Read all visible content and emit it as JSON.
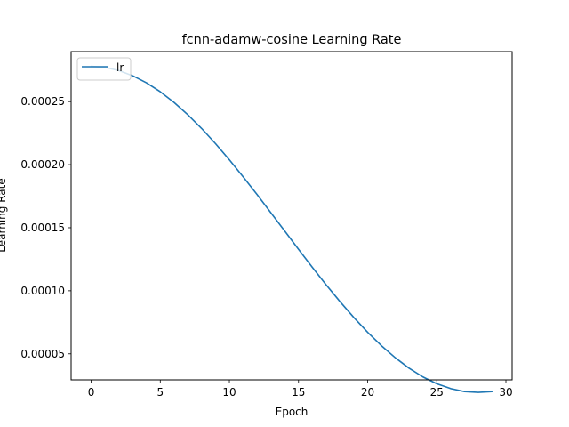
{
  "chart_data": {
    "type": "line",
    "title": "fcnn-adamw-cosine  Learning Rate",
    "xlabel": "Epoch",
    "ylabel": "Learning Rate",
    "xlim": [
      -1.45,
      30.45
    ],
    "ylim": [
      2.94e-05,
      0.0002896
    ],
    "xticks": [
      0,
      5,
      10,
      15,
      20,
      25,
      30
    ],
    "xtick_labels": [
      "0",
      "5",
      "10",
      "15",
      "20",
      "25",
      "30"
    ],
    "yticks": [
      5e-05,
      0.0001,
      0.00015,
      0.0002,
      0.00025
    ],
    "ytick_labels": [
      "0.00005",
      "0.00010",
      "0.00015",
      "0.00020",
      "0.00025"
    ],
    "grid": false,
    "legend": {
      "position": "upper-left",
      "entries": [
        "lr"
      ]
    },
    "series": [
      {
        "name": "lr",
        "color": "#1f77b4",
        "x": [
          0,
          1,
          2,
          3,
          4,
          5,
          6,
          7,
          8,
          9,
          10,
          11,
          12,
          13,
          14,
          15,
          16,
          17,
          18,
          19,
          20,
          21,
          22,
          23,
          24,
          25,
          26,
          27,
          28,
          29
        ],
        "values": [
          0.0002779,
          0.0002771,
          0.0002746,
          0.0002705,
          0.0002649,
          0.0002578,
          0.0002493,
          0.0002395,
          0.0002286,
          0.0002166,
          0.0002038,
          0.0001903,
          0.0001763,
          0.0001619,
          0.0001474,
          0.0001329,
          0.0001186,
          0.0001047,
          9.14e-05,
          7.88e-05,
          6.71e-05,
          5.64e-05,
          4.69e-05,
          3.86e-05,
          3.17e-05,
          2.63e-05,
          2.25e-05,
          2.01e-05,
          1.95e-05,
          2.01e-05
        ]
      }
    ]
  }
}
